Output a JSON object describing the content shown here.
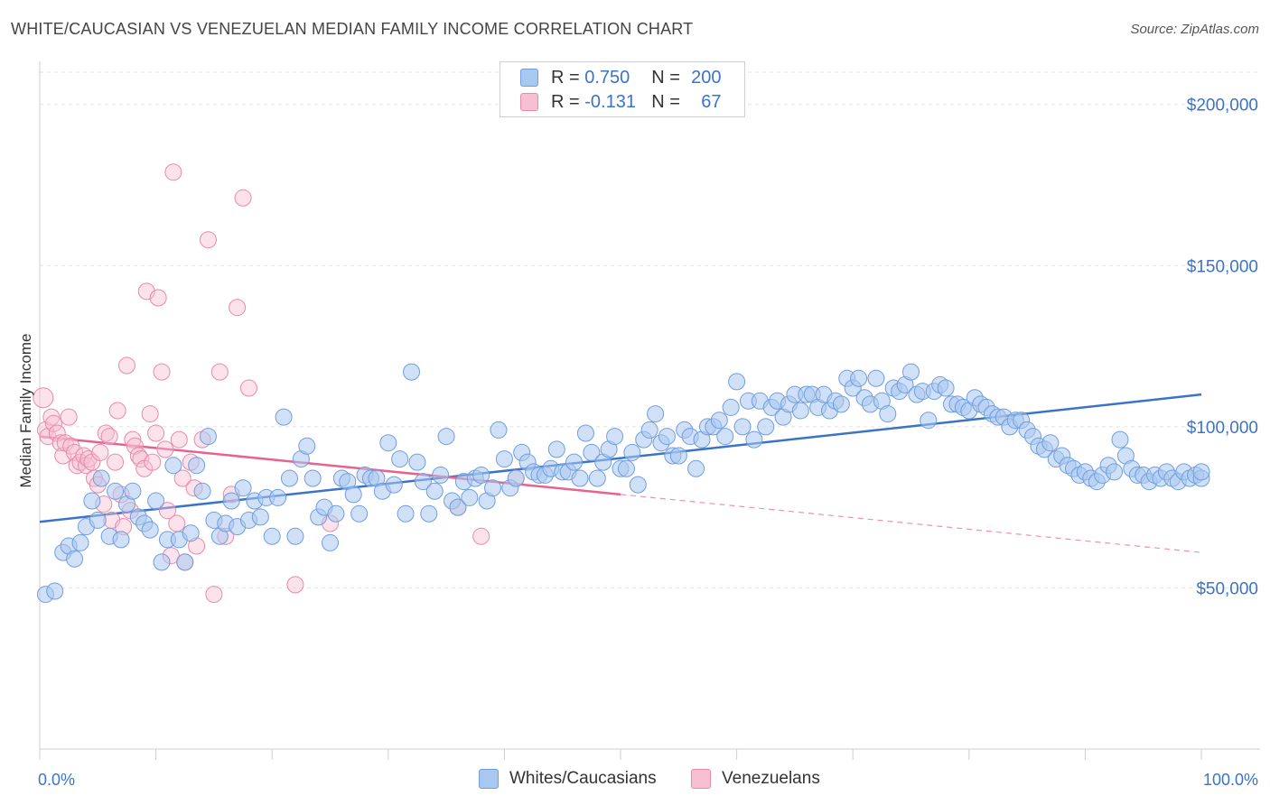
{
  "header": {
    "title": "WHITE/CAUCASIAN VS VENEZUELAN MEDIAN FAMILY INCOME CORRELATION CHART",
    "source": "Source: ZipAtlas.com"
  },
  "legend": {
    "r_label": "R =",
    "n_label": "N =",
    "series": [
      {
        "r": "0.750",
        "n": "200",
        "color": "#a9c8f0",
        "border": "#6f9de0"
      },
      {
        "r": "-0.131",
        "n": "67",
        "color": "#f7bfd2",
        "border": "#e88aa9"
      }
    ]
  },
  "bottom_legend": [
    "Whites/Caucasians",
    "Venezuelans"
  ],
  "chart_data": {
    "type": "scatter",
    "xlabel": "",
    "ylabel": "Median Family Income",
    "xlim": [
      0,
      100
    ],
    "ylim": [
      0,
      210000
    ],
    "x_tick_labels": [
      "0.0%",
      "100.0%"
    ],
    "y_ticks": [
      50000,
      100000,
      150000,
      200000
    ],
    "y_tick_labels": [
      "$50,000",
      "$100,000",
      "$150,000",
      "$200,000"
    ],
    "grid": true,
    "legend_position": "top-center",
    "colors": {
      "series1": "#3b73c8",
      "series2": "#e8628f"
    },
    "series": [
      {
        "name": "Whites/Caucasians",
        "trend": {
          "x0": 0,
          "y0": 70500,
          "x1": 100,
          "y1": 110000,
          "solid_until": 100
        },
        "points": [
          [
            0.5,
            48000
          ],
          [
            1.3,
            49000
          ],
          [
            2,
            61000
          ],
          [
            2.5,
            63000
          ],
          [
            3,
            59000
          ],
          [
            3.5,
            64000
          ],
          [
            4,
            69000
          ],
          [
            4.5,
            77000
          ],
          [
            5,
            71000
          ],
          [
            5.3,
            84000
          ],
          [
            6,
            66000
          ],
          [
            6.5,
            80000
          ],
          [
            7,
            65000
          ],
          [
            7.5,
            76000
          ],
          [
            8,
            80000
          ],
          [
            8.5,
            72000
          ],
          [
            9,
            70000
          ],
          [
            9.5,
            68000
          ],
          [
            10,
            77000
          ],
          [
            10.5,
            58000
          ],
          [
            11,
            65000
          ],
          [
            11.5,
            88000
          ],
          [
            12,
            65000
          ],
          [
            12.5,
            58000
          ],
          [
            13,
            67000
          ],
          [
            13.5,
            88000
          ],
          [
            14,
            80000
          ],
          [
            14.5,
            97000
          ],
          [
            15,
            71000
          ],
          [
            15.5,
            66000
          ],
          [
            16,
            70000
          ],
          [
            16.5,
            77000
          ],
          [
            17,
            69000
          ],
          [
            17.5,
            81000
          ],
          [
            18,
            71000
          ],
          [
            18.5,
            77000
          ],
          [
            19,
            72000
          ],
          [
            19.5,
            78000
          ],
          [
            20,
            66000
          ],
          [
            20.5,
            78000
          ],
          [
            21,
            103000
          ],
          [
            21.5,
            84000
          ],
          [
            22,
            66000
          ],
          [
            22.5,
            90000
          ],
          [
            23,
            94000
          ],
          [
            23.5,
            84000
          ],
          [
            24,
            72000
          ],
          [
            24.5,
            75000
          ],
          [
            25,
            64000
          ],
          [
            25.5,
            73000
          ],
          [
            26,
            84000
          ],
          [
            26.5,
            83000
          ],
          [
            27,
            79000
          ],
          [
            27.5,
            73000
          ],
          [
            28,
            85000
          ],
          [
            28.5,
            84000
          ],
          [
            29,
            84000
          ],
          [
            29.5,
            80000
          ],
          [
            30,
            95000
          ],
          [
            30.5,
            82000
          ],
          [
            31,
            90000
          ],
          [
            31.5,
            73000
          ],
          [
            32,
            117000
          ],
          [
            32.5,
            89000
          ],
          [
            33,
            83000
          ],
          [
            33.5,
            73000
          ],
          [
            34,
            80000
          ],
          [
            34.5,
            85000
          ],
          [
            35,
            97000
          ],
          [
            35.5,
            77000
          ],
          [
            36,
            75000
          ],
          [
            36.5,
            83000
          ],
          [
            37,
            78000
          ],
          [
            37.5,
            84000
          ],
          [
            38,
            85000
          ],
          [
            38.5,
            77000
          ],
          [
            39,
            81000
          ],
          [
            39.5,
            99000
          ],
          [
            40,
            90000
          ],
          [
            40.5,
            81000
          ],
          [
            41,
            84000
          ],
          [
            41.5,
            92000
          ],
          [
            42,
            89000
          ],
          [
            42.5,
            86000
          ],
          [
            43,
            85000
          ],
          [
            43.5,
            85000
          ],
          [
            44,
            87000
          ],
          [
            44.5,
            93000
          ],
          [
            45,
            86000
          ],
          [
            45.5,
            86000
          ],
          [
            46,
            89000
          ],
          [
            46.5,
            84000
          ],
          [
            47,
            98000
          ],
          [
            47.5,
            92000
          ],
          [
            48,
            84000
          ],
          [
            48.5,
            89000
          ],
          [
            49,
            93000
          ],
          [
            49.5,
            97000
          ],
          [
            50,
            87000
          ],
          [
            50.5,
            87000
          ],
          [
            51,
            92000
          ],
          [
            51.5,
            82000
          ],
          [
            52,
            96000
          ],
          [
            52.5,
            99000
          ],
          [
            53,
            104000
          ],
          [
            53.5,
            95000
          ],
          [
            54,
            97000
          ],
          [
            54.5,
            91000
          ],
          [
            55,
            91000
          ],
          [
            55.5,
            99000
          ],
          [
            56,
            97000
          ],
          [
            56.5,
            87000
          ],
          [
            57,
            96000
          ],
          [
            57.5,
            100000
          ],
          [
            58,
            100000
          ],
          [
            58.5,
            102000
          ],
          [
            59,
            97000
          ],
          [
            59.5,
            106000
          ],
          [
            60,
            114000
          ],
          [
            60.5,
            100000
          ],
          [
            61,
            108000
          ],
          [
            61.5,
            96000
          ],
          [
            62,
            108000
          ],
          [
            62.5,
            100000
          ],
          [
            63,
            106000
          ],
          [
            63.5,
            108000
          ],
          [
            64,
            103000
          ],
          [
            64.5,
            107000
          ],
          [
            65,
            110000
          ],
          [
            65.5,
            105000
          ],
          [
            66,
            110000
          ],
          [
            66.5,
            110000
          ],
          [
            67,
            106000
          ],
          [
            67.5,
            110000
          ],
          [
            68,
            105000
          ],
          [
            68.5,
            108000
          ],
          [
            69,
            107000
          ],
          [
            69.5,
            115000
          ],
          [
            70,
            112000
          ],
          [
            70.5,
            115000
          ],
          [
            71,
            109000
          ],
          [
            71.5,
            107000
          ],
          [
            72,
            115000
          ],
          [
            72.5,
            108000
          ],
          [
            73,
            104000
          ],
          [
            73.5,
            112000
          ],
          [
            74,
            111000
          ],
          [
            74.5,
            113000
          ],
          [
            75,
            117000
          ],
          [
            75.5,
            110000
          ],
          [
            76,
            111000
          ],
          [
            76.5,
            102000
          ],
          [
            77,
            111000
          ],
          [
            77.5,
            113000
          ],
          [
            78,
            112000
          ],
          [
            78.5,
            107000
          ],
          [
            79,
            107000
          ],
          [
            79.5,
            106000
          ],
          [
            80,
            105000
          ],
          [
            80.5,
            109000
          ],
          [
            81,
            107000
          ],
          [
            81.5,
            106000
          ],
          [
            82,
            104000
          ],
          [
            82.5,
            103000
          ],
          [
            83,
            103000
          ],
          [
            83.5,
            100000
          ],
          [
            84,
            102000
          ],
          [
            84.5,
            102000
          ],
          [
            85,
            99000
          ],
          [
            85.5,
            97000
          ],
          [
            86,
            94000
          ],
          [
            86.5,
            93000
          ],
          [
            87,
            95000
          ],
          [
            87.5,
            90000
          ],
          [
            88,
            91000
          ],
          [
            88.5,
            88000
          ],
          [
            89,
            87000
          ],
          [
            89.5,
            85000
          ],
          [
            90,
            86000
          ],
          [
            90.5,
            84000
          ],
          [
            91,
            83000
          ],
          [
            91.5,
            85000
          ],
          [
            92,
            88000
          ],
          [
            92.5,
            86000
          ],
          [
            93,
            96000
          ],
          [
            93.5,
            91000
          ],
          [
            94,
            87000
          ],
          [
            94.5,
            85000
          ],
          [
            95,
            85000
          ],
          [
            95.5,
            83000
          ],
          [
            96,
            85000
          ],
          [
            96.5,
            84000
          ],
          [
            97,
            86000
          ],
          [
            97.5,
            84000
          ],
          [
            98,
            83000
          ],
          [
            98.5,
            86000
          ],
          [
            99,
            84000
          ],
          [
            99.5,
            85000
          ],
          [
            100,
            84000
          ],
          [
            100,
            86000
          ]
        ]
      },
      {
        "name": "Venezuelans",
        "trend": {
          "x0": 0,
          "y0": 97000,
          "x1": 100,
          "y1": 61000,
          "solid_until": 50
        },
        "points": [
          [
            0.3,
            109000
          ],
          [
            0.5,
            99000
          ],
          [
            0.7,
            97000
          ],
          [
            1,
            103000
          ],
          [
            1.2,
            101000
          ],
          [
            1.5,
            98000
          ],
          [
            1.8,
            95000
          ],
          [
            2,
            91000
          ],
          [
            2.2,
            95000
          ],
          [
            2.5,
            103000
          ],
          [
            2.7,
            94000
          ],
          [
            3,
            92000
          ],
          [
            3.2,
            88000
          ],
          [
            3.5,
            89000
          ],
          [
            3.8,
            91000
          ],
          [
            4,
            88000
          ],
          [
            4.2,
            90000
          ],
          [
            4.5,
            89000
          ],
          [
            4.7,
            84000
          ],
          [
            5,
            82000
          ],
          [
            5.2,
            92000
          ],
          [
            5.5,
            76000
          ],
          [
            5.7,
            98000
          ],
          [
            6,
            97000
          ],
          [
            6.2,
            71000
          ],
          [
            6.5,
            89000
          ],
          [
            6.7,
            105000
          ],
          [
            7,
            79000
          ],
          [
            7.2,
            69000
          ],
          [
            7.5,
            119000
          ],
          [
            7.8,
            74000
          ],
          [
            8,
            96000
          ],
          [
            8.2,
            94000
          ],
          [
            8.5,
            91000
          ],
          [
            8.7,
            90000
          ],
          [
            9,
            87000
          ],
          [
            9.2,
            142000
          ],
          [
            9.5,
            104000
          ],
          [
            9.7,
            89000
          ],
          [
            10,
            98000
          ],
          [
            10.2,
            140000
          ],
          [
            10.5,
            117000
          ],
          [
            10.8,
            93000
          ],
          [
            11,
            74000
          ],
          [
            11.3,
            60000
          ],
          [
            11.5,
            179000
          ],
          [
            11.8,
            70000
          ],
          [
            12,
            96000
          ],
          [
            12.3,
            84000
          ],
          [
            12.5,
            58000
          ],
          [
            13,
            89000
          ],
          [
            13.3,
            81000
          ],
          [
            13.5,
            63000
          ],
          [
            14,
            96000
          ],
          [
            14.5,
            158000
          ],
          [
            15,
            48000
          ],
          [
            15.5,
            117000
          ],
          [
            16,
            66000
          ],
          [
            16.5,
            79000
          ],
          [
            17,
            137000
          ],
          [
            17.5,
            171000
          ],
          [
            18,
            112000
          ],
          [
            22,
            51000
          ],
          [
            25,
            70000
          ],
          [
            36,
            75000
          ],
          [
            38,
            66000
          ],
          [
            41,
            84000
          ]
        ]
      }
    ]
  }
}
